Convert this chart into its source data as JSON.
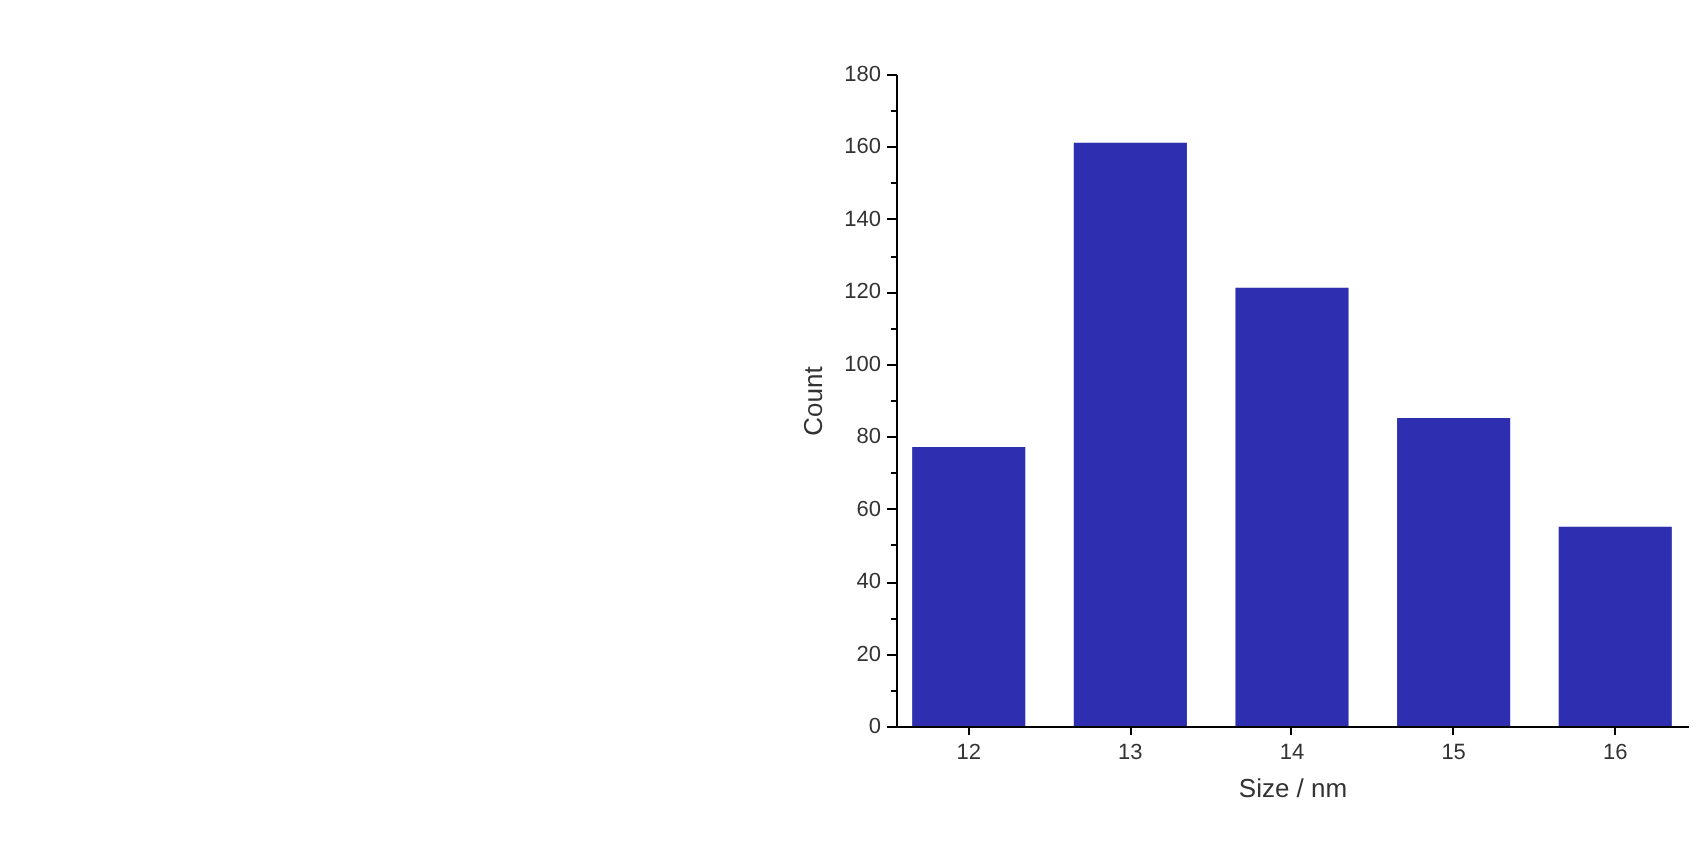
{
  "chart_data": {
    "type": "bar",
    "xlabel": "Size / nm",
    "ylabel": "Count",
    "categories": [
      "12",
      "13",
      "14",
      "15",
      "16"
    ],
    "values": [
      77,
      161,
      121,
      85,
      55
    ],
    "color": "#2e2eb0",
    "ylim": [
      0,
      180
    ],
    "yticks": [
      0,
      {
        "value": 10,
        "label": null
      },
      20,
      {
        "value": 30,
        "label": null
      },
      40,
      {
        "value": 50,
        "label": null
      },
      60,
      {
        "value": 70,
        "label": null
      },
      80,
      {
        "value": 90,
        "label": null
      },
      100,
      {
        "value": 110,
        "label": null
      },
      120,
      {
        "value": 130,
        "label": null
      },
      140,
      {
        "value": 150,
        "label": null
      },
      160,
      {
        "value": 170,
        "label": null
      },
      180
    ],
    "grid": false
  }
}
